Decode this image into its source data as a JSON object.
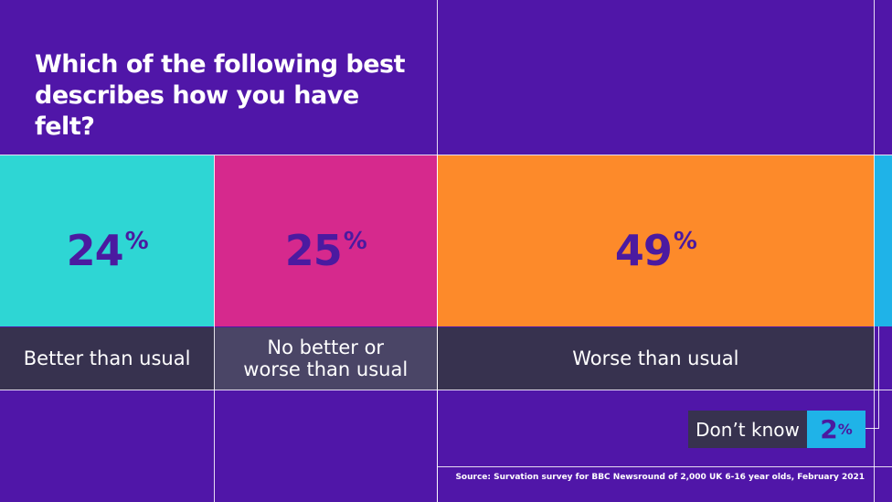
{
  "chart_data": {
    "type": "bar",
    "layout": "stacked-horizontal",
    "title": "Which of the following best describes how you have felt?",
    "series": [
      {
        "name": "Better than usual",
        "value": 24,
        "color": "#2ed6d4"
      },
      {
        "name": "No better or worse than usual",
        "value": 25,
        "color": "#d6298d"
      },
      {
        "name": "Worse than usual",
        "value": 49,
        "color": "#fd8a2a"
      },
      {
        "name": "Don't know",
        "value": 2,
        "color": "#1fb3e8"
      }
    ],
    "value_suffix": "%",
    "dont_know_label": "Don’t know",
    "source": "Source: Survation survey for BBC Newsround of 2,000 UK 6-16 year olds, February 2021"
  },
  "colors": {
    "background": "#5016a8",
    "label_band": "#37324f",
    "value_text": "#4b1aa0"
  }
}
